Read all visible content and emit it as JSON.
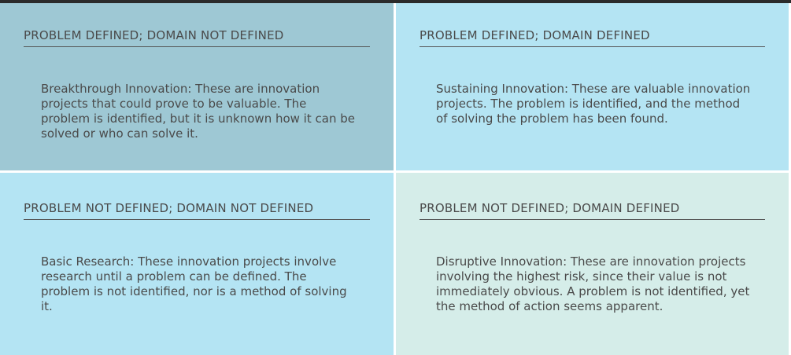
{
  "colors": {
    "top_left_fill": "#9ec8d4",
    "top_right_fill": "#b4e4f3",
    "bottom_left_fill": "#b4e4f3",
    "bottom_right_fill": "#d5ede9",
    "text": "#4a4a4a",
    "rule": "#555555"
  },
  "quadrants": {
    "top_left": {
      "heading": "PROBLEM DEFINED; DOMAIN NOT DEFINED",
      "body": "Breakthrough Innovation: These are innovation projects that could prove to be valuable. The problem is identified, but it is unknown how it can be solved or who can solve it."
    },
    "top_right": {
      "heading": "PROBLEM DEFINED; DOMAIN DEFINED",
      "body": "Sustaining Innovation: These are valuable innovation projects. The problem is identified, and the method of solving the problem has been found."
    },
    "bottom_left": {
      "heading": "PROBLEM NOT DEFINED; DOMAIN NOT DEFINED",
      "body": "Basic Research: These innovation projects involve research until a problem can be defined. The problem is not identified, nor is a method of solving it."
    },
    "bottom_right": {
      "heading": "PROBLEM NOT DEFINED; DOMAIN DEFINED",
      "body": "Disruptive Innovation: These are innovation projects involving the highest risk, since their value is not immediately obvious. A problem is not identified, yet the method of action seems apparent."
    }
  }
}
